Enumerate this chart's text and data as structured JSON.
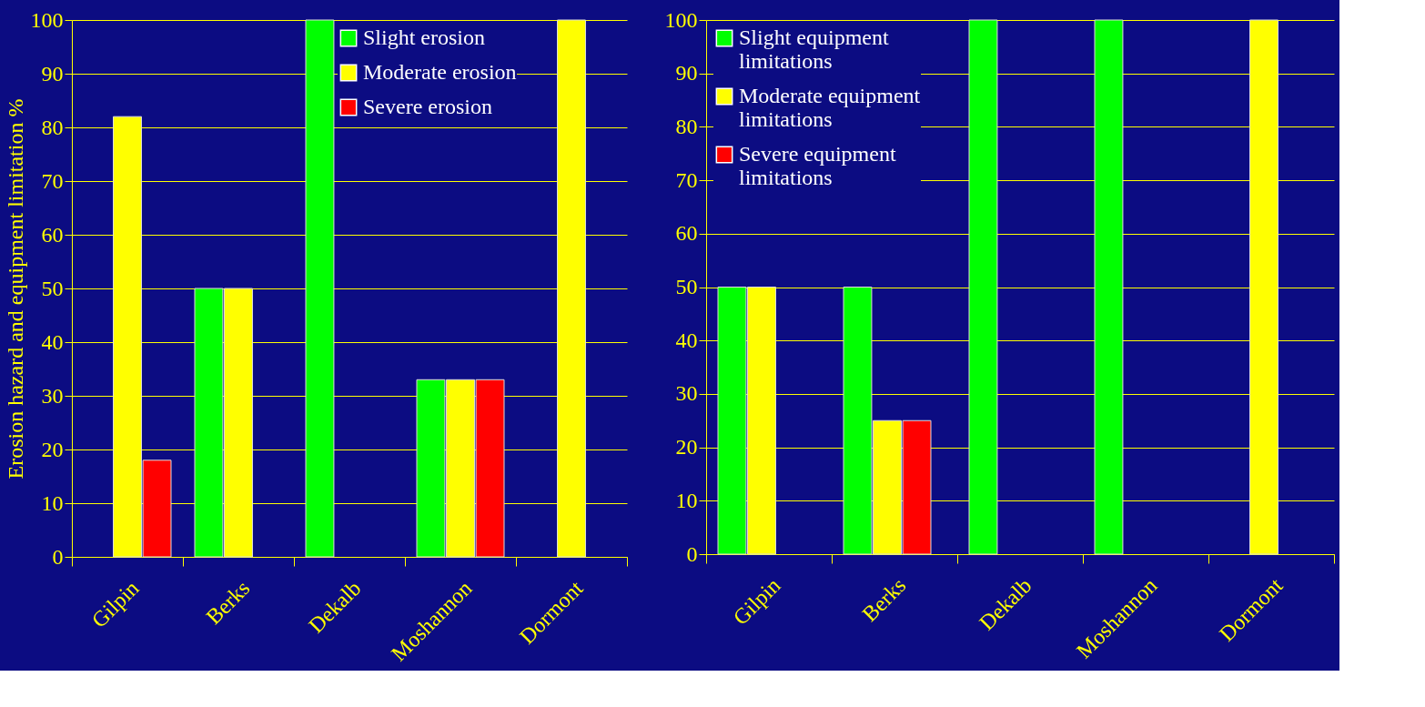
{
  "chart_data": [
    {
      "type": "bar",
      "ylabel": "Erosion hazard and equipment limitation %",
      "categories": [
        "Gilpin",
        "Berks",
        "Dekalb",
        "Moshannon",
        "Dormont"
      ],
      "ylim": [
        0,
        100
      ],
      "yticks": [
        0,
        10,
        20,
        30,
        40,
        50,
        60,
        70,
        80,
        90,
        100
      ],
      "grid": "y",
      "legend": "top right",
      "series": [
        {
          "name": "Slight erosion",
          "color": "#00ff00",
          "values": [
            null,
            50,
            100,
            33,
            null
          ]
        },
        {
          "name": "Moderate erosion",
          "color": "#ffff00",
          "values": [
            82,
            50,
            null,
            33,
            100
          ]
        },
        {
          "name": "Severe erosion",
          "color": "#ff0000",
          "values": [
            18,
            null,
            null,
            33,
            null
          ]
        }
      ]
    },
    {
      "type": "bar",
      "categories": [
        "Gilpin",
        "Berks",
        "Dekalb",
        "Moshannon",
        "Dormont"
      ],
      "ylim": [
        0,
        100
      ],
      "yticks": [
        0,
        10,
        20,
        30,
        40,
        50,
        60,
        70,
        80,
        90,
        100
      ],
      "grid": "y",
      "legend": "top left",
      "series": [
        {
          "name": "Slight equipment limitations",
          "color": "#00ff00",
          "values": [
            50,
            50,
            100,
            100,
            null
          ]
        },
        {
          "name": "Moderate equipment limitations",
          "color": "#ffff00",
          "values": [
            50,
            25,
            null,
            null,
            100
          ]
        },
        {
          "name": "Severe equipment limitations",
          "color": "#ff0000",
          "values": [
            null,
            25,
            null,
            null,
            null
          ]
        }
      ]
    }
  ]
}
